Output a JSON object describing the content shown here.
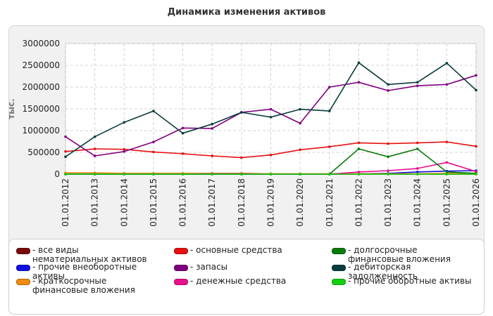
{
  "chart_data": {
    "type": "line",
    "title": "Динамика изменения активов",
    "ylabel": "тыс.",
    "xlabel": "",
    "ylim": [
      0,
      3000000
    ],
    "yticks": [
      "3000000",
      "2500000",
      "2000000",
      "1500000",
      "1000000",
      "500000",
      "0"
    ],
    "ytick_values": [
      3000000,
      2500000,
      2000000,
      1500000,
      1000000,
      500000,
      0
    ],
    "categories": [
      "01.01.2012",
      "01.01.2013",
      "01.01.2014",
      "01.01.2015",
      "01.01.2016",
      "01.01.2017",
      "01.01.2018",
      "01.01.2019",
      "01.01.2020",
      "01.01.2021",
      "01.01.2022",
      "01.01.2023",
      "01.01.2024",
      "01.01.2025",
      "01.01.2026"
    ],
    "grid": true,
    "legend_position": "bottom",
    "series": [
      {
        "name": "- все виды нематериальных активов",
        "color": "#7a0a0a",
        "values": [
          0,
          0,
          0,
          0,
          0,
          0,
          0,
          0,
          0,
          0,
          0,
          0,
          0,
          0,
          0
        ]
      },
      {
        "name": "- прочие внеоборотные активы",
        "color": "#1010e0",
        "values": [
          0,
          0,
          0,
          0,
          0,
          0,
          0,
          0,
          0,
          0,
          10000,
          20000,
          50000,
          70000,
          80000
        ]
      },
      {
        "name": "- краткосрочные финансовые вложения",
        "color": "#f08a10",
        "values": [
          30000,
          30000,
          20000,
          20000,
          20000,
          20000,
          20000,
          10000,
          10000,
          10000,
          10000,
          10000,
          10000,
          20000,
          10000
        ]
      },
      {
        "name": "- основные средства",
        "color": "#e81010",
        "values": [
          520000,
          580000,
          570000,
          510000,
          470000,
          420000,
          380000,
          440000,
          560000,
          630000,
          720000,
          700000,
          720000,
          740000,
          640000
        ]
      },
      {
        "name": "- запасы",
        "color": "#800080",
        "values": [
          860000,
          420000,
          520000,
          740000,
          1060000,
          1050000,
          1420000,
          1490000,
          1170000,
          2000000,
          2110000,
          1920000,
          2030000,
          2060000,
          2270000
        ]
      },
      {
        "name": "- денежные средства",
        "color": "#e8108a",
        "values": [
          0,
          0,
          0,
          0,
          0,
          10000,
          10000,
          0,
          0,
          0,
          50000,
          80000,
          130000,
          270000,
          60000
        ]
      },
      {
        "name": "- долгосрочные финансовые вложения",
        "color": "#0a7a0a",
        "values": [
          0,
          0,
          0,
          0,
          0,
          0,
          0,
          0,
          0,
          0,
          580000,
          400000,
          580000,
          50000,
          20000
        ]
      },
      {
        "name": "- дебиторская задолженность",
        "color": "#0a3d3d",
        "values": [
          400000,
          860000,
          1190000,
          1450000,
          940000,
          1150000,
          1420000,
          1310000,
          1490000,
          1450000,
          2560000,
          2060000,
          2110000,
          2550000,
          1930000
        ]
      },
      {
        "name": "- прочие оборотные активы",
        "color": "#10d010",
        "values": [
          0,
          0,
          0,
          0,
          0,
          0,
          0,
          0,
          0,
          0,
          0,
          0,
          0,
          0,
          0
        ]
      }
    ]
  }
}
